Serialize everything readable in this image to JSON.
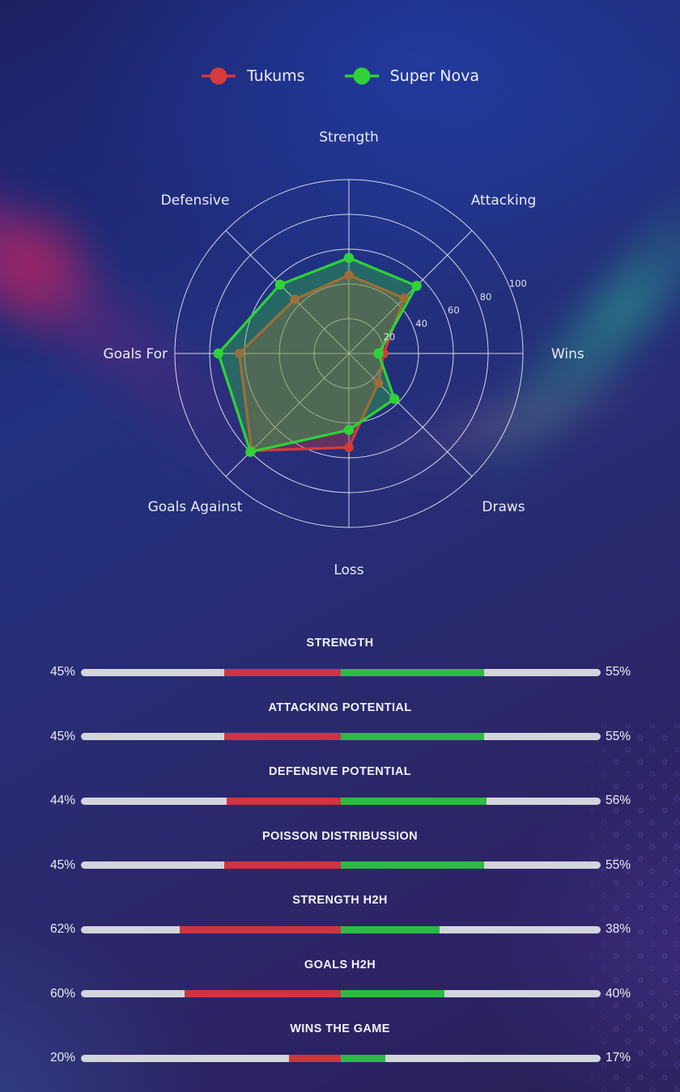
{
  "colors": {
    "tukums_red": "#d63a3a",
    "supernova_green": "#2fd237",
    "bar_red": "#ce3540",
    "bar_green": "#2cbb43",
    "bar_track": "#d3d5dc",
    "grid_white": "#ffffff",
    "label_text": "#e9ecf4"
  },
  "legend": {
    "items": [
      {
        "label": "Tukums",
        "color": "#d63a3a"
      },
      {
        "label": "Super Nova",
        "color": "#2fd237"
      }
    ]
  },
  "chart_data": {
    "type": "radar",
    "categories": [
      "Strength",
      "Attacking",
      "Wins",
      "Draws",
      "Loss",
      "Goals Against",
      "Goals For",
      "Defensive"
    ],
    "series": [
      {
        "name": "Tukums",
        "color": "#d63a3a",
        "values": [
          45,
          45,
          20,
          24,
          54,
          79,
          63,
          44
        ]
      },
      {
        "name": "Super Nova",
        "color": "#2fd237",
        "values": [
          55,
          55,
          17,
          37,
          44,
          80,
          75,
          56
        ]
      }
    ],
    "ticks": [
      20,
      40,
      60,
      80,
      100
    ],
    "rmax": 100,
    "grid": true,
    "legend_position": "top"
  },
  "bars": [
    {
      "title": "STRENGTH",
      "left": "45%",
      "right": "55%"
    },
    {
      "title": "ATTACKING POTENTIAL",
      "left": "45%",
      "right": "55%"
    },
    {
      "title": "DEFENSIVE POTENTIAL",
      "left": "44%",
      "right": "56%"
    },
    {
      "title": "POISSON DISTRIBUSSION",
      "left": "45%",
      "right": "55%"
    },
    {
      "title": "STRENGTH H2H",
      "left": "62%",
      "right": "38%"
    },
    {
      "title": "GOALS H2H",
      "left": "60%",
      "right": "40%"
    },
    {
      "title": "WINS THE GAME",
      "left": "20%",
      "right": "17%"
    }
  ]
}
